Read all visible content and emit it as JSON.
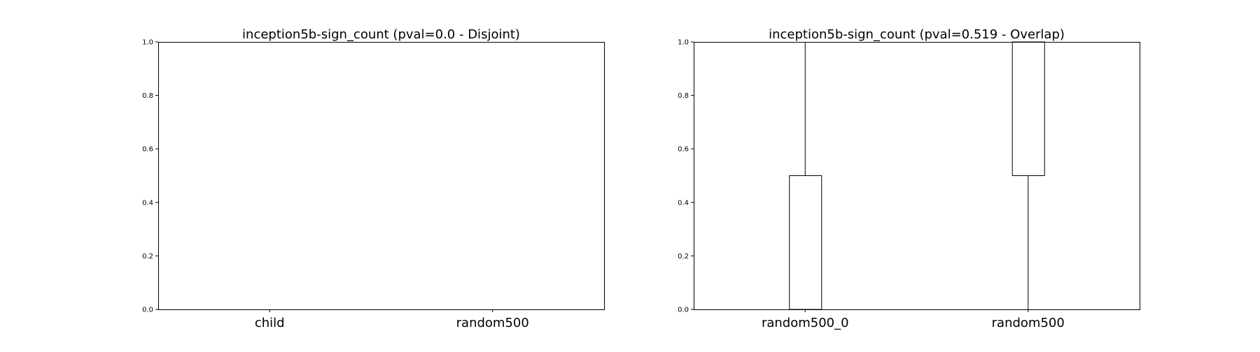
{
  "chart_data": [
    {
      "type": "box",
      "title": "inception5b-sign_count (pval=0.0 - Disjoint)",
      "categories": [
        "child",
        "random500"
      ],
      "boxes": [],
      "ylim": [
        0.0,
        1.0
      ],
      "yticks": [
        "0.0",
        "0.2",
        "0.4",
        "0.6",
        "0.8",
        "1.0"
      ],
      "grid": false
    },
    {
      "type": "box",
      "title": "inception5b-sign_count (pval=0.519 - Overlap)",
      "categories": [
        "random500_0",
        "random500"
      ],
      "boxes": [
        {
          "category": "random500_0",
          "whisker_low": 0.0,
          "q1": 0.0,
          "median": 0.0,
          "q3": 0.5,
          "whisker_high": 1.0
        },
        {
          "category": "random500",
          "whisker_low": 0.0,
          "q1": 0.5,
          "median": 1.0,
          "q3": 1.0,
          "whisker_high": 1.0
        }
      ],
      "ylim": [
        0.0,
        1.0
      ],
      "yticks": [
        "0.0",
        "0.2",
        "0.4",
        "0.6",
        "0.8",
        "1.0"
      ],
      "grid": false
    }
  ]
}
